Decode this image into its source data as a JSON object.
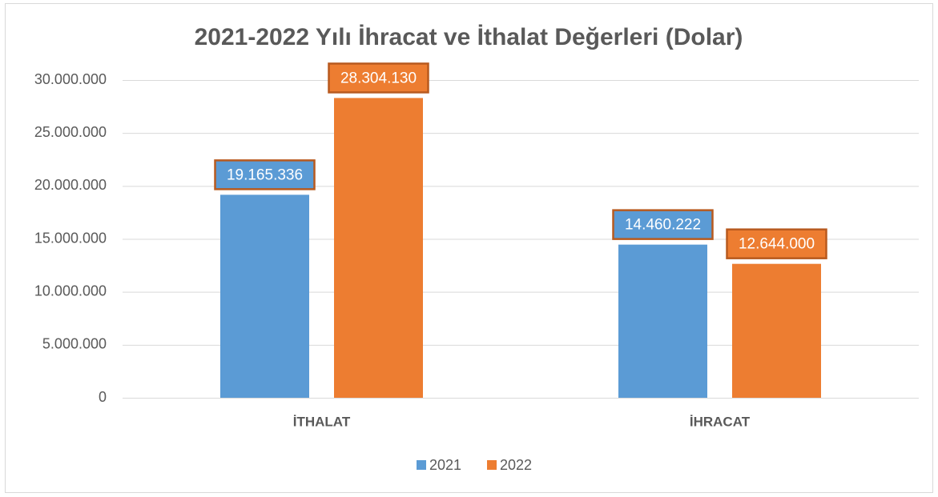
{
  "chart_data": {
    "type": "bar",
    "title": "2021-2022 Yılı İhracat ve İthalat Değerleri (Dolar)",
    "categories": [
      "İTHALAT",
      "İHRACAT"
    ],
    "series": [
      {
        "name": "2021",
        "color": "#5b9bd5",
        "values": [
          19165336,
          14460222
        ],
        "value_labels": [
          "19.165.336",
          "14.460.222"
        ]
      },
      {
        "name": "2022",
        "color": "#ed7d31",
        "values": [
          28304130,
          12644000
        ],
        "value_labels": [
          "28.304.130",
          "12.644.000"
        ]
      }
    ],
    "ylim": [
      0,
      30000000
    ],
    "yticks": [
      0,
      {
        "value": 5000000,
        "label": "5.000.000"
      },
      {
        "value": 10000000,
        "label": "10.000.000"
      },
      {
        "value": 15000000,
        "label": "15.000.000"
      },
      {
        "value": 20000000,
        "label": "20.000.000"
      },
      {
        "value": 25000000,
        "label": "25.000.000"
      },
      {
        "value": 30000000,
        "label": "30.000.000"
      }
    ],
    "grid": true,
    "legend": "bottom"
  }
}
